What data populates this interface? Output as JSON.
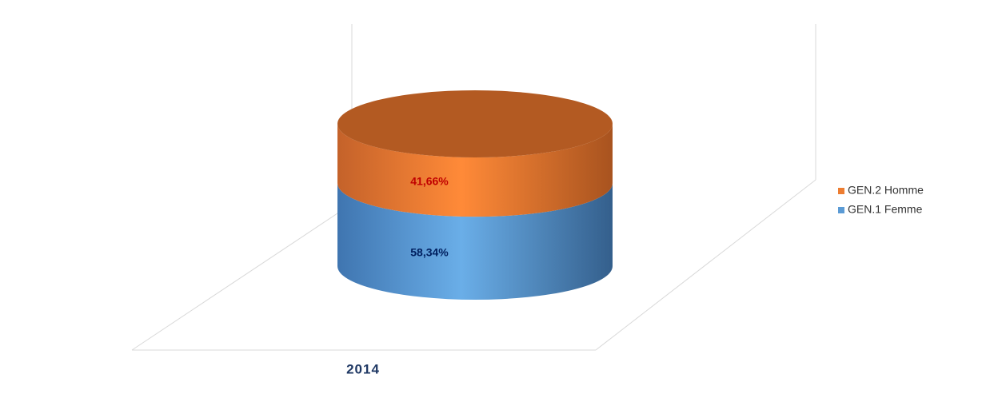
{
  "chart_data": {
    "type": "stacked_cylinder",
    "categories": [
      "2014"
    ],
    "series": [
      {
        "name": "GEN.1 Femme",
        "color": "#5b9bd5",
        "label_color": "#002060",
        "values": [
          58.34
        ],
        "value_labels": [
          "58,34%"
        ]
      },
      {
        "name": "GEN.2 Homme",
        "color": "#ed7d31",
        "label_color": "#c00000",
        "values": [
          41.66
        ],
        "value_labels": [
          "41,66%"
        ]
      }
    ],
    "legend": "right"
  }
}
